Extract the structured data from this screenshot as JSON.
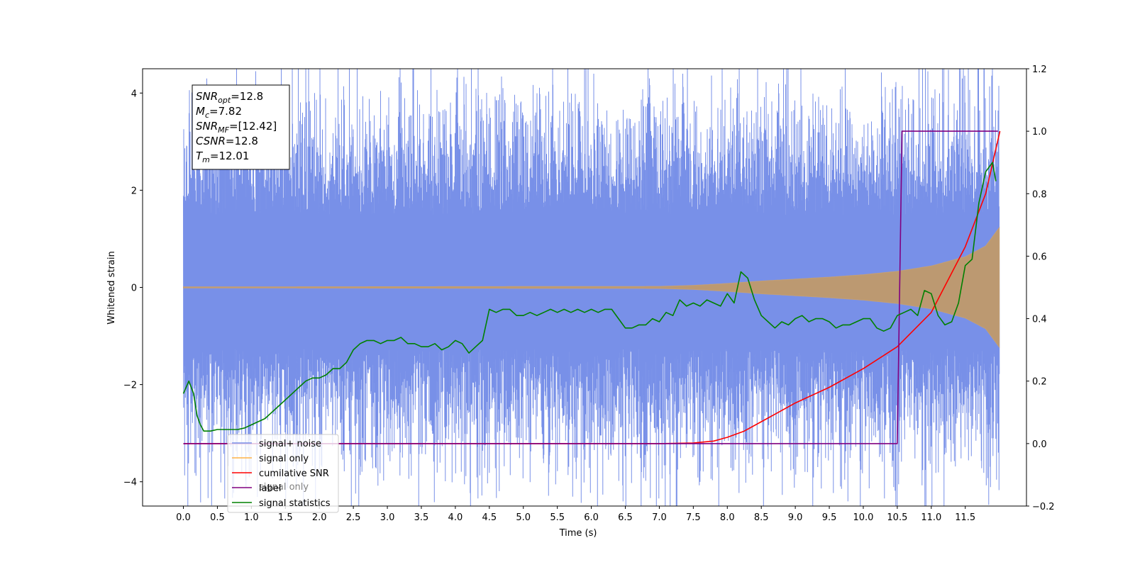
{
  "chart_data": {
    "type": "line",
    "xlabel": "Time (s)",
    "ylabel": "Whitened strain",
    "xlim": [
      -0.6,
      12.4
    ],
    "ylim": [
      -4.5,
      4.5
    ],
    "y2lim": [
      -0.2,
      1.2
    ],
    "x_ticks": [
      "0.0",
      "0.5",
      "1.0",
      "1.5",
      "2.0",
      "2.5",
      "3.0",
      "3.5",
      "4.0",
      "4.5",
      "5.0",
      "5.5",
      "6.0",
      "6.5",
      "7.0",
      "7.5",
      "8.0",
      "8.5",
      "9.0",
      "9.5",
      "10.0",
      "10.5",
      "11.0",
      "11.5"
    ],
    "y_ticks": [
      "4",
      "2",
      "0",
      "−2",
      "−4"
    ],
    "y2_ticks": [
      "1.2",
      "1.0",
      "0.8",
      "0.6",
      "0.4",
      "0.2",
      "0.0",
      "−0.2"
    ],
    "info_box": {
      "lines": [
        {
          "sym": "SNR",
          "sub": "opt",
          "val": "=12.8"
        },
        {
          "sym": "M",
          "sub": "c",
          "val": "=7.82"
        },
        {
          "sym": "SNR",
          "sub": "MF",
          "val": "=[12.42]"
        },
        {
          "sym": "CSNR",
          "sub": "",
          "val": "=12.8"
        },
        {
          "sym": "T",
          "sub": "m",
          "val": "=12.01"
        }
      ]
    },
    "legend": {
      "position": "lower-left",
      "entries": [
        {
          "label": "signal+ noise",
          "color": "#7890e8"
        },
        {
          "label": "signal only",
          "color": "#ffb347"
        },
        {
          "label": "cumilative SNR",
          "color": "#ff0000"
        },
        {
          "label": "label",
          "color": "#800080"
        },
        {
          "label": "signal statistics",
          "color": "#008000"
        }
      ],
      "ghost_label": "signal only"
    },
    "series": [
      {
        "name": "signal+ noise",
        "axis": "left",
        "color": "#7890e8",
        "x_range": [
          0.0,
          12.0
        ],
        "envelope": {
          "typical_amplitude": 2.3,
          "min": -4.1,
          "max": 4.1
        }
      },
      {
        "name": "signal only",
        "axis": "left",
        "color": "#ffb347",
        "envelope": {
          "x": [
            0.0,
            7.0,
            7.5,
            8.0,
            8.5,
            9.0,
            9.5,
            10.0,
            10.5,
            11.0,
            11.5,
            11.8,
            12.0
          ],
          "amplitude": [
            0.01,
            0.02,
            0.04,
            0.08,
            0.13,
            0.17,
            0.21,
            0.26,
            0.33,
            0.44,
            0.63,
            0.85,
            1.23
          ]
        }
      },
      {
        "name": "cumilative SNR",
        "axis": "right",
        "color": "#ff0000",
        "x": [
          0.0,
          7.0,
          7.5,
          7.8,
          8.0,
          8.25,
          8.5,
          8.75,
          9.0,
          9.5,
          10.0,
          10.5,
          11.0,
          11.5,
          11.8,
          12.01
        ],
        "y": [
          0.0,
          0.0,
          0.002,
          0.008,
          0.02,
          0.04,
          0.07,
          0.1,
          0.13,
          0.18,
          0.24,
          0.31,
          0.42,
          0.63,
          0.8,
          1.0
        ]
      },
      {
        "name": "label",
        "axis": "right",
        "color": "#800080",
        "x": [
          0.0,
          10.5,
          10.57,
          11.98
        ],
        "y": [
          0.0,
          0.0,
          1.0,
          1.0
        ]
      },
      {
        "name": "signal statistics",
        "axis": "right",
        "color": "#008000",
        "x": [
          0.0,
          0.08,
          0.15,
          0.2,
          0.25,
          0.3,
          0.4,
          0.5,
          0.6,
          0.7,
          0.8,
          0.9,
          1.0,
          1.1,
          1.2,
          1.3,
          1.4,
          1.5,
          1.6,
          1.7,
          1.8,
          1.9,
          2.0,
          2.1,
          2.2,
          2.3,
          2.4,
          2.5,
          2.6,
          2.7,
          2.8,
          2.9,
          3.0,
          3.1,
          3.2,
          3.3,
          3.4,
          3.5,
          3.6,
          3.7,
          3.8,
          3.9,
          4.0,
          4.1,
          4.2,
          4.3,
          4.4,
          4.5,
          4.6,
          4.7,
          4.8,
          4.9,
          5.0,
          5.1,
          5.2,
          5.3,
          5.4,
          5.5,
          5.6,
          5.7,
          5.8,
          5.9,
          6.0,
          6.1,
          6.2,
          6.3,
          6.4,
          6.5,
          6.6,
          6.7,
          6.8,
          6.9,
          7.0,
          7.1,
          7.2,
          7.3,
          7.4,
          7.5,
          7.6,
          7.7,
          7.8,
          7.9,
          8.0,
          8.1,
          8.2,
          8.3,
          8.4,
          8.5,
          8.6,
          8.7,
          8.8,
          8.9,
          9.0,
          9.1,
          9.2,
          9.3,
          9.4,
          9.5,
          9.6,
          9.7,
          9.8,
          9.9,
          10.0,
          10.1,
          10.2,
          10.3,
          10.4,
          10.5,
          10.6,
          10.7,
          10.8,
          10.9,
          11.0,
          11.1,
          11.2,
          11.3,
          11.4,
          11.5,
          11.6,
          11.7,
          11.8,
          11.9,
          11.95
        ],
        "y": [
          0.16,
          0.2,
          0.16,
          0.09,
          0.06,
          0.04,
          0.04,
          0.045,
          0.045,
          0.045,
          0.045,
          0.05,
          0.06,
          0.07,
          0.08,
          0.1,
          0.12,
          0.14,
          0.16,
          0.18,
          0.2,
          0.21,
          0.21,
          0.22,
          0.24,
          0.24,
          0.26,
          0.3,
          0.32,
          0.33,
          0.33,
          0.32,
          0.33,
          0.33,
          0.34,
          0.32,
          0.32,
          0.31,
          0.31,
          0.32,
          0.3,
          0.31,
          0.33,
          0.32,
          0.29,
          0.31,
          0.33,
          0.43,
          0.42,
          0.43,
          0.43,
          0.41,
          0.41,
          0.42,
          0.41,
          0.42,
          0.43,
          0.42,
          0.43,
          0.42,
          0.43,
          0.42,
          0.43,
          0.42,
          0.43,
          0.43,
          0.4,
          0.37,
          0.37,
          0.38,
          0.38,
          0.4,
          0.39,
          0.42,
          0.41,
          0.46,
          0.44,
          0.45,
          0.44,
          0.46,
          0.45,
          0.44,
          0.48,
          0.45,
          0.55,
          0.53,
          0.46,
          0.41,
          0.39,
          0.37,
          0.39,
          0.38,
          0.4,
          0.41,
          0.39,
          0.4,
          0.4,
          0.39,
          0.37,
          0.38,
          0.38,
          0.39,
          0.4,
          0.4,
          0.37,
          0.36,
          0.37,
          0.41,
          0.42,
          0.43,
          0.41,
          0.49,
          0.48,
          0.41,
          0.38,
          0.39,
          0.45,
          0.57,
          0.59,
          0.77,
          0.87,
          0.9,
          0.84
        ]
      }
    ]
  }
}
